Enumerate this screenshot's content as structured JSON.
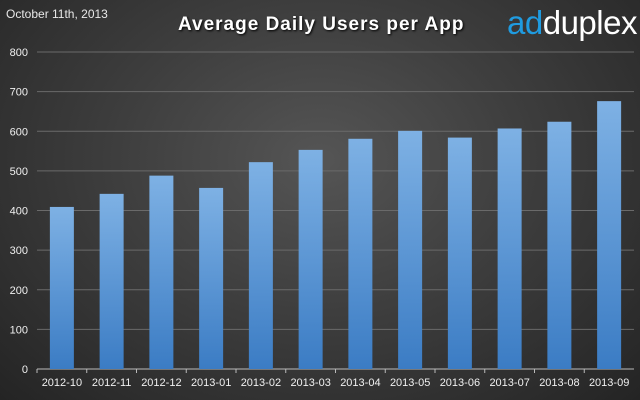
{
  "header": {
    "date": "October 11th, 2013",
    "title": "Average Daily Users per App",
    "logo_part1": "ad",
    "logo_part2": "duplex"
  },
  "colors": {
    "bar_top": "#7eb1e4",
    "bar_bottom": "#3b7cc4",
    "gridline": "#6a6a6a",
    "axis": "#bbbbbb",
    "brand": "#1f9be0"
  },
  "chart_data": {
    "type": "bar",
    "title": "Average Daily Users per App",
    "xlabel": "",
    "ylabel": "",
    "categories": [
      "2012-10",
      "2012-11",
      "2012-12",
      "2013-01",
      "2013-02",
      "2013-03",
      "2013-04",
      "2013-05",
      "2013-06",
      "2013-07",
      "2013-08",
      "2013-09"
    ],
    "values": [
      409,
      442,
      488,
      457,
      522,
      553,
      581,
      601,
      584,
      607,
      624,
      676
    ],
    "ylim": [
      0,
      800
    ],
    "yticks": [
      0,
      100,
      200,
      300,
      400,
      500,
      600,
      700,
      800
    ],
    "grid": true,
    "legend": "none"
  }
}
